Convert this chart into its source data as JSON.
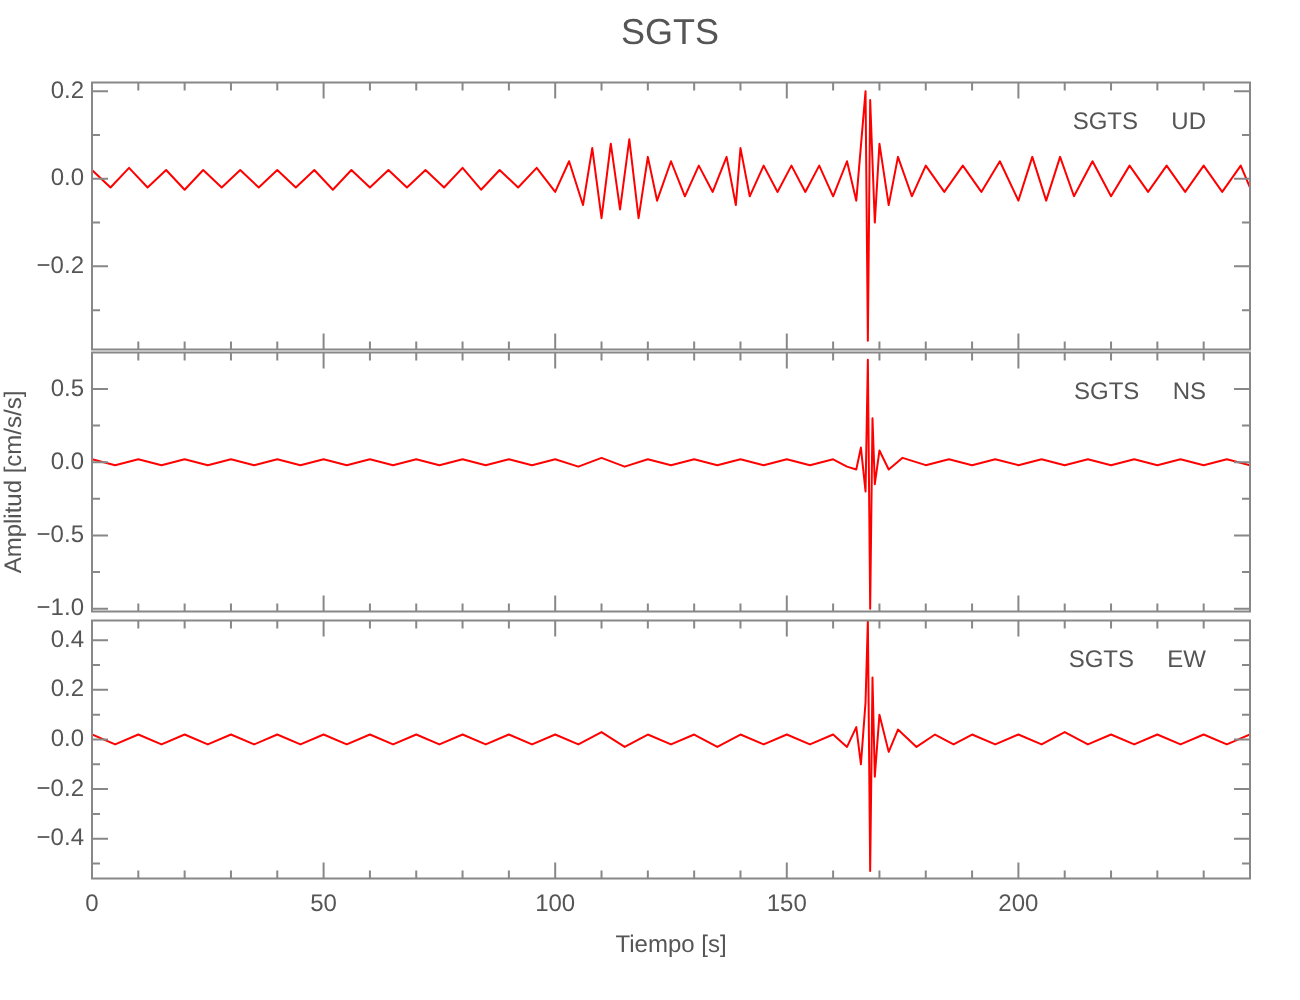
{
  "chart_data": [
    {
      "type": "line",
      "title": "SGTS",
      "annotations": [
        "SGTS   UD"
      ],
      "xlim": [
        0,
        250
      ],
      "ylim": [
        -0.39,
        0.22
      ],
      "tick_labels": "y",
      "legend": false,
      "grid": false,
      "xticks": [
        0,
        {
          "value": 10,
          "label": null
        },
        {
          "value": 20,
          "label": null
        },
        {
          "value": 30,
          "label": null
        },
        {
          "value": 40,
          "label": null
        },
        50,
        {
          "value": 60,
          "label": null
        },
        {
          "value": 70,
          "label": null
        },
        {
          "value": 80,
          "label": null
        },
        {
          "value": 90,
          "label": null
        },
        100,
        {
          "value": 110,
          "label": null
        },
        {
          "value": 120,
          "label": null
        },
        {
          "value": 130,
          "label": null
        },
        {
          "value": 140,
          "label": null
        },
        150,
        {
          "value": 160,
          "label": null
        },
        {
          "value": 170,
          "label": null
        },
        {
          "value": 180,
          "label": null
        },
        {
          "value": 190,
          "label": null
        },
        200,
        {
          "value": 210,
          "label": null
        },
        {
          "value": 220,
          "label": null
        },
        {
          "value": 230,
          "label": null
        },
        {
          "value": 240,
          "label": null
        }
      ],
      "yticks": [
        {
          "value": -0.3,
          "label": null
        },
        {
          "value": -0.2,
          "label": "−0.2"
        },
        {
          "value": -0.1,
          "label": null
        },
        {
          "value": 0,
          "label": "0.0"
        },
        {
          "value": 0.1,
          "label": null
        },
        {
          "value": 0.2,
          "label": "0.2"
        }
      ],
      "series": [
        {
          "color": "#ff0000",
          "x": [
            0,
            4,
            8,
            12,
            16,
            20,
            24,
            28,
            32,
            36,
            40,
            44,
            48,
            52,
            56,
            60,
            64,
            68,
            72,
            76,
            80,
            84,
            88,
            92,
            96,
            100,
            103,
            106,
            108,
            110,
            112,
            114,
            116,
            118,
            120,
            122,
            125,
            128,
            131,
            134,
            137,
            139,
            140,
            142,
            145,
            148,
            151,
            154,
            157,
            160,
            163,
            165,
            167,
            167.5,
            168,
            169,
            170,
            172,
            174,
            177,
            180,
            184,
            188,
            192,
            196,
            200,
            203,
            206,
            209,
            212,
            216,
            220,
            224,
            228,
            232,
            236,
            240,
            244,
            248,
            250
          ],
          "values": [
            0.02,
            -0.02,
            0.025,
            -0.02,
            0.02,
            -0.025,
            0.02,
            -0.02,
            0.02,
            -0.02,
            0.02,
            -0.02,
            0.02,
            -0.025,
            0.02,
            -0.02,
            0.02,
            -0.02,
            0.02,
            -0.02,
            0.025,
            -0.025,
            0.02,
            -0.02,
            0.025,
            -0.03,
            0.04,
            -0.06,
            0.07,
            -0.09,
            0.08,
            -0.07,
            0.09,
            -0.09,
            0.05,
            -0.05,
            0.04,
            -0.04,
            0.03,
            -0.03,
            0.05,
            -0.06,
            0.07,
            -0.04,
            0.03,
            -0.03,
            0.03,
            -0.03,
            0.03,
            -0.04,
            0.04,
            -0.05,
            0.2,
            -0.37,
            0.18,
            -0.1,
            0.08,
            -0.06,
            0.05,
            -0.04,
            0.03,
            -0.03,
            0.03,
            -0.03,
            0.04,
            -0.05,
            0.05,
            -0.05,
            0.05,
            -0.04,
            0.04,
            -0.04,
            0.03,
            -0.03,
            0.03,
            -0.03,
            0.03,
            -0.03,
            0.03,
            -0.02
          ]
        }
      ]
    },
    {
      "type": "line",
      "ylabel": "Amplitud [cm/s/s]",
      "annotations": [
        "SGTS   NS"
      ],
      "xlim": [
        0,
        250
      ],
      "ylim": [
        -1.02,
        0.75
      ],
      "tick_labels": "y",
      "legend": false,
      "grid": false,
      "xticks": [
        0,
        {
          "value": 10,
          "label": null
        },
        {
          "value": 20,
          "label": null
        },
        {
          "value": 30,
          "label": null
        },
        {
          "value": 40,
          "label": null
        },
        50,
        {
          "value": 60,
          "label": null
        },
        {
          "value": 70,
          "label": null
        },
        {
          "value": 80,
          "label": null
        },
        {
          "value": 90,
          "label": null
        },
        100,
        {
          "value": 110,
          "label": null
        },
        {
          "value": 120,
          "label": null
        },
        {
          "value": 130,
          "label": null
        },
        {
          "value": 140,
          "label": null
        },
        150,
        {
          "value": 160,
          "label": null
        },
        {
          "value": 170,
          "label": null
        },
        {
          "value": 180,
          "label": null
        },
        {
          "value": 190,
          "label": null
        },
        200,
        {
          "value": 210,
          "label": null
        },
        {
          "value": 220,
          "label": null
        },
        {
          "value": 230,
          "label": null
        },
        {
          "value": 240,
          "label": null
        }
      ],
      "yticks": [
        {
          "value": -1,
          "label": "−1.0"
        },
        {
          "value": -0.75,
          "label": null
        },
        {
          "value": -0.5,
          "label": "−0.5"
        },
        {
          "value": -0.25,
          "label": null
        },
        {
          "value": 0,
          "label": "0.0"
        },
        {
          "value": 0.25,
          "label": null
        },
        {
          "value": 0.5,
          "label": "0.5"
        }
      ],
      "series": [
        {
          "color": "#ff0000",
          "x": [
            0,
            5,
            10,
            15,
            20,
            25,
            30,
            35,
            40,
            45,
            50,
            55,
            60,
            65,
            70,
            75,
            80,
            85,
            90,
            95,
            100,
            105,
            110,
            115,
            120,
            125,
            130,
            135,
            140,
            145,
            150,
            155,
            160,
            163,
            165,
            166,
            167,
            167.5,
            168,
            168.5,
            169,
            170,
            172,
            175,
            180,
            185,
            190,
            195,
            200,
            205,
            210,
            215,
            220,
            225,
            230,
            235,
            240,
            245,
            250
          ],
          "values": [
            0.02,
            -0.02,
            0.02,
            -0.02,
            0.02,
            -0.02,
            0.02,
            -0.02,
            0.02,
            -0.02,
            0.02,
            -0.02,
            0.02,
            -0.02,
            0.02,
            -0.02,
            0.02,
            -0.02,
            0.02,
            -0.02,
            0.02,
            -0.03,
            0.03,
            -0.03,
            0.02,
            -0.02,
            0.02,
            -0.02,
            0.02,
            -0.02,
            0.02,
            -0.02,
            0.02,
            -0.03,
            -0.05,
            0.1,
            -0.2,
            0.7,
            -1.0,
            0.3,
            -0.15,
            0.08,
            -0.05,
            0.03,
            -0.02,
            0.02,
            -0.02,
            0.02,
            -0.02,
            0.02,
            -0.02,
            0.02,
            -0.02,
            0.02,
            -0.02,
            0.02,
            -0.02,
            0.02,
            -0.02
          ]
        }
      ]
    },
    {
      "type": "line",
      "xlabel": "Tiempo [s]",
      "annotations": [
        "SGTS   EW"
      ],
      "xlim": [
        0,
        250
      ],
      "ylim": [
        -0.56,
        0.48
      ],
      "legend": false,
      "grid": false,
      "xticks": [
        0,
        {
          "value": 10,
          "label": null
        },
        {
          "value": 20,
          "label": null
        },
        {
          "value": 30,
          "label": null
        },
        {
          "value": 40,
          "label": null
        },
        50,
        {
          "value": 60,
          "label": null
        },
        {
          "value": 70,
          "label": null
        },
        {
          "value": 80,
          "label": null
        },
        {
          "value": 90,
          "label": null
        },
        100,
        {
          "value": 110,
          "label": null
        },
        {
          "value": 120,
          "label": null
        },
        {
          "value": 130,
          "label": null
        },
        {
          "value": 140,
          "label": null
        },
        150,
        {
          "value": 160,
          "label": null
        },
        {
          "value": 170,
          "label": null
        },
        {
          "value": 180,
          "label": null
        },
        {
          "value": 190,
          "label": null
        },
        200,
        {
          "value": 210,
          "label": null
        },
        {
          "value": 220,
          "label": null
        },
        {
          "value": 230,
          "label": null
        },
        {
          "value": 240,
          "label": null
        }
      ],
      "yticks": [
        {
          "value": -0.5,
          "label": null
        },
        {
          "value": -0.4,
          "label": "−0.4"
        },
        {
          "value": -0.3,
          "label": null
        },
        {
          "value": -0.2,
          "label": "−0.2"
        },
        {
          "value": -0.1,
          "label": null
        },
        {
          "value": 0,
          "label": "0.0"
        },
        {
          "value": 0.1,
          "label": null
        },
        {
          "value": 0.2,
          "label": "0.2"
        },
        {
          "value": 0.3,
          "label": null
        },
        {
          "value": 0.4,
          "label": "0.4"
        }
      ],
      "series": [
        {
          "color": "#ff0000",
          "x": [
            0,
            5,
            10,
            15,
            20,
            25,
            30,
            35,
            40,
            45,
            50,
            55,
            60,
            65,
            70,
            75,
            80,
            85,
            90,
            95,
            100,
            105,
            110,
            115,
            120,
            125,
            130,
            135,
            140,
            145,
            150,
            155,
            160,
            163,
            165,
            166,
            167,
            167.5,
            168,
            168.5,
            169,
            170,
            172,
            174,
            178,
            182,
            186,
            190,
            195,
            200,
            205,
            210,
            215,
            220,
            225,
            230,
            235,
            240,
            245,
            250
          ],
          "values": [
            0.02,
            -0.02,
            0.02,
            -0.02,
            0.02,
            -0.02,
            0.02,
            -0.02,
            0.02,
            -0.02,
            0.02,
            -0.02,
            0.02,
            -0.02,
            0.02,
            -0.02,
            0.02,
            -0.02,
            0.02,
            -0.02,
            0.02,
            -0.02,
            0.03,
            -0.03,
            0.02,
            -0.02,
            0.02,
            -0.03,
            0.02,
            -0.02,
            0.02,
            -0.02,
            0.02,
            -0.03,
            0.05,
            -0.1,
            0.15,
            0.48,
            -0.53,
            0.25,
            -0.15,
            0.1,
            -0.05,
            0.04,
            -0.03,
            0.02,
            -0.02,
            0.02,
            -0.02,
            0.02,
            -0.02,
            0.03,
            -0.02,
            0.02,
            -0.02,
            0.02,
            -0.02,
            0.02,
            -0.02,
            0.02
          ]
        }
      ]
    }
  ]
}
